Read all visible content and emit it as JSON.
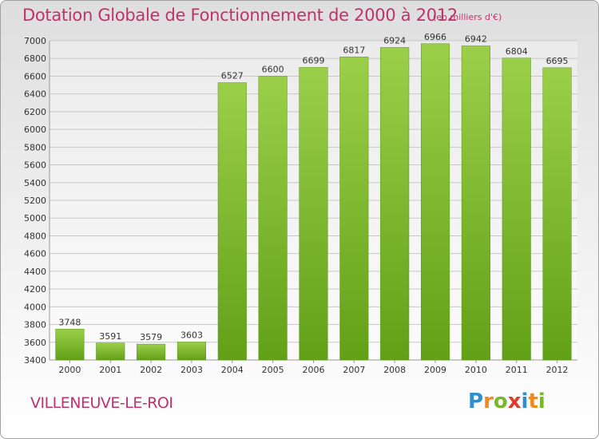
{
  "header": {
    "title": "Dotation Globale de Fonctionnement de 2000 à 2012",
    "subtitle": "(en milliers d'€)"
  },
  "footer": {
    "commune": "VILLENEUVE-LE-ROI",
    "logo_text": "Proxiti",
    "logo_letters": [
      {
        "char": "P",
        "color": "#2f8fce"
      },
      {
        "char": "r",
        "color": "#f08a1e"
      },
      {
        "char": "o",
        "color": "#7ab72b"
      },
      {
        "char": "x",
        "color": "#e23b2e"
      },
      {
        "char": "i",
        "color": "#2f8fce"
      },
      {
        "char": "t",
        "color": "#f08a1e"
      },
      {
        "char": "i",
        "color": "#7ab72b"
      }
    ]
  },
  "colors": {
    "bar_top": "#9bcf4a",
    "bar_bottom": "#62a018",
    "title": "#c0336a",
    "grid": "#c8c8c8"
  },
  "chart_data": {
    "type": "bar",
    "title": "Dotation Globale de Fonctionnement de 2000 à 2012",
    "subtitle": "(en milliers d'€)",
    "xlabel": "",
    "ylabel": "",
    "categories": [
      "2000",
      "2001",
      "2002",
      "2003",
      "2004",
      "2005",
      "2006",
      "2007",
      "2008",
      "2009",
      "2010",
      "2011",
      "2012"
    ],
    "values": [
      3748,
      3591,
      3579,
      3603,
      6527,
      6600,
      6699,
      6817,
      6924,
      6966,
      6942,
      6804,
      6695
    ],
    "ylim": [
      3400,
      7000
    ],
    "yticks": [
      3400,
      3600,
      3800,
      4000,
      4200,
      4400,
      4600,
      4800,
      5000,
      5200,
      5400,
      5600,
      5800,
      6000,
      6200,
      6400,
      6600,
      6800,
      7000
    ],
    "grid": true,
    "legend": "none"
  }
}
